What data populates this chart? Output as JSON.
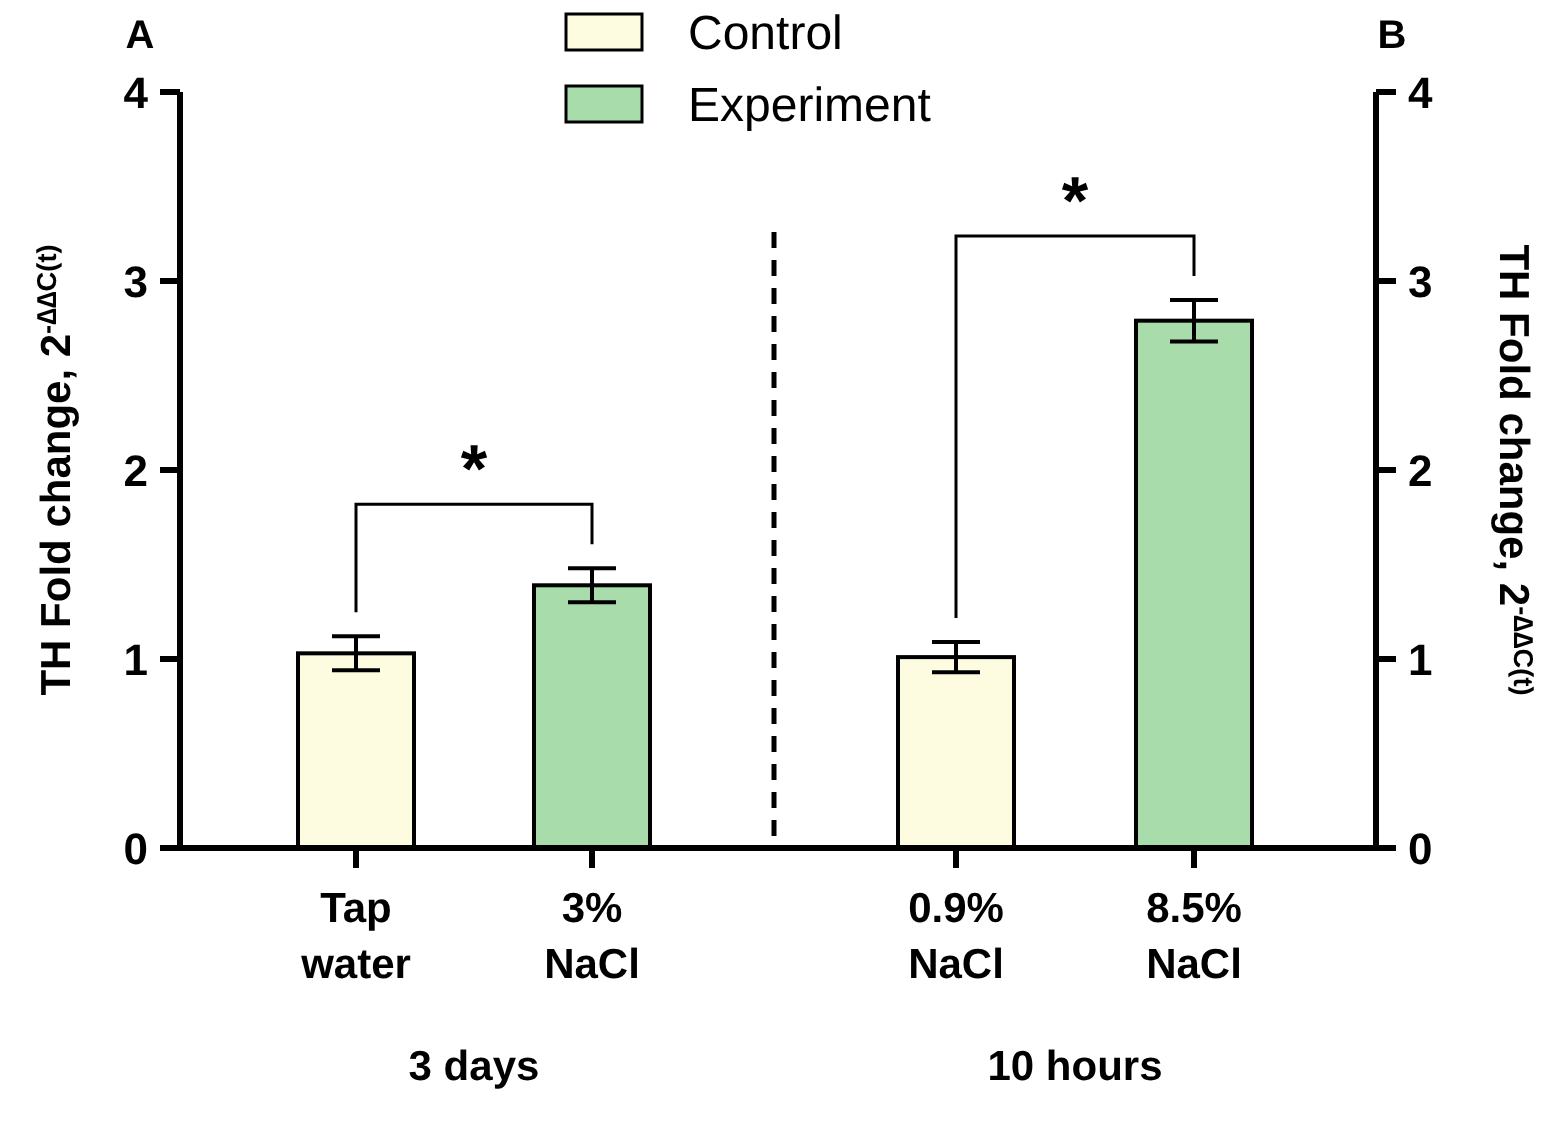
{
  "chart_data": [
    {
      "type": "bar",
      "categories": [
        "Tap water",
        "3% NaCl"
      ],
      "xlabel": "3 days",
      "ylabel": "TH Fold change, 2$^{-∆∆C(t)}$",
      "ylim": [
        0,
        4
      ],
      "yticks": [
        0,
        1,
        2,
        3,
        4
      ],
      "legend": "top right",
      "annotations": [
        "A",
        "*"
      ],
      "series": [
        {
          "name": "Control",
          "color": "#fdfbe0",
          "values": [
            1.03,
            null
          ],
          "errors": [
            0.09,
            null
          ]
        },
        {
          "name": "Experiment",
          "color": "#a8dcaa",
          "values": [
            null,
            1.39
          ],
          "errors": [
            null,
            0.09
          ]
        }
      ]
    },
    {
      "type": "bar",
      "categories": [
        "0.9% NaCl",
        "8.5% NaCl"
      ],
      "xlabel": "10 hours",
      "y2label": "TH Fold change, 2$^{-∆∆C(t)}$",
      "y2lim": [
        0,
        4
      ],
      "y2ticks": [
        0,
        1,
        2,
        3,
        4
      ],
      "annotations": [
        "B",
        "*"
      ],
      "series": [
        {
          "name": "Control",
          "color": "#fdfbe0",
          "values": [
            1.01,
            null
          ],
          "errors": [
            0.08,
            null
          ],
          "axis": "y2"
        },
        {
          "name": "Experiment",
          "color": "#a8dcaa",
          "values": [
            null,
            2.79
          ],
          "errors": [
            null,
            0.11
          ],
          "axis": "y2"
        }
      ]
    }
  ]
}
